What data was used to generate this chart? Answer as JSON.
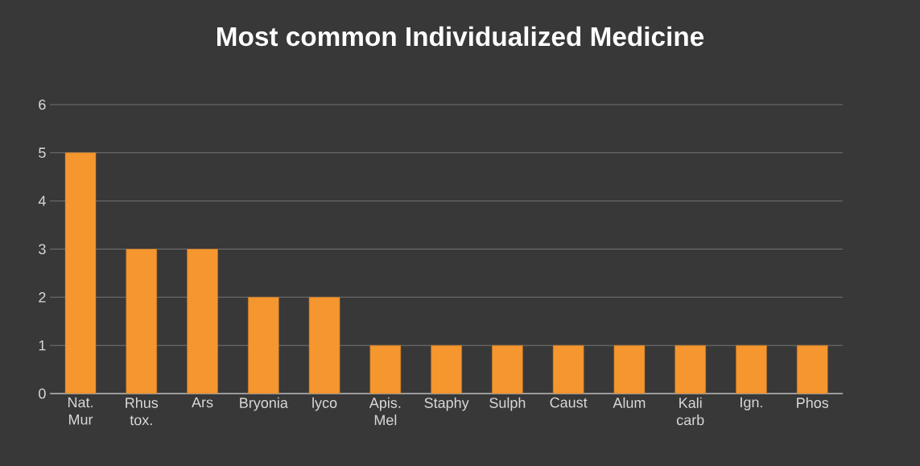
{
  "chart_data": {
    "type": "bar",
    "title": "Most common Individualized Medicine",
    "categories": [
      "Nat. Mur",
      "Rhus tox.",
      "Ars",
      "Bryonia",
      "lyco",
      "Apis. Mel",
      "Staphy",
      "Sulph",
      "Caust",
      "Alum",
      "Kali carb",
      "Ign.",
      "Phos"
    ],
    "values": [
      5,
      3,
      3,
      2,
      2,
      1,
      1,
      1,
      1,
      1,
      1,
      1,
      1
    ],
    "color": "#f5962e",
    "ylim": [
      0,
      6
    ],
    "yticks": [
      0,
      1,
      2,
      3,
      4,
      5,
      6
    ],
    "grid": "y"
  }
}
